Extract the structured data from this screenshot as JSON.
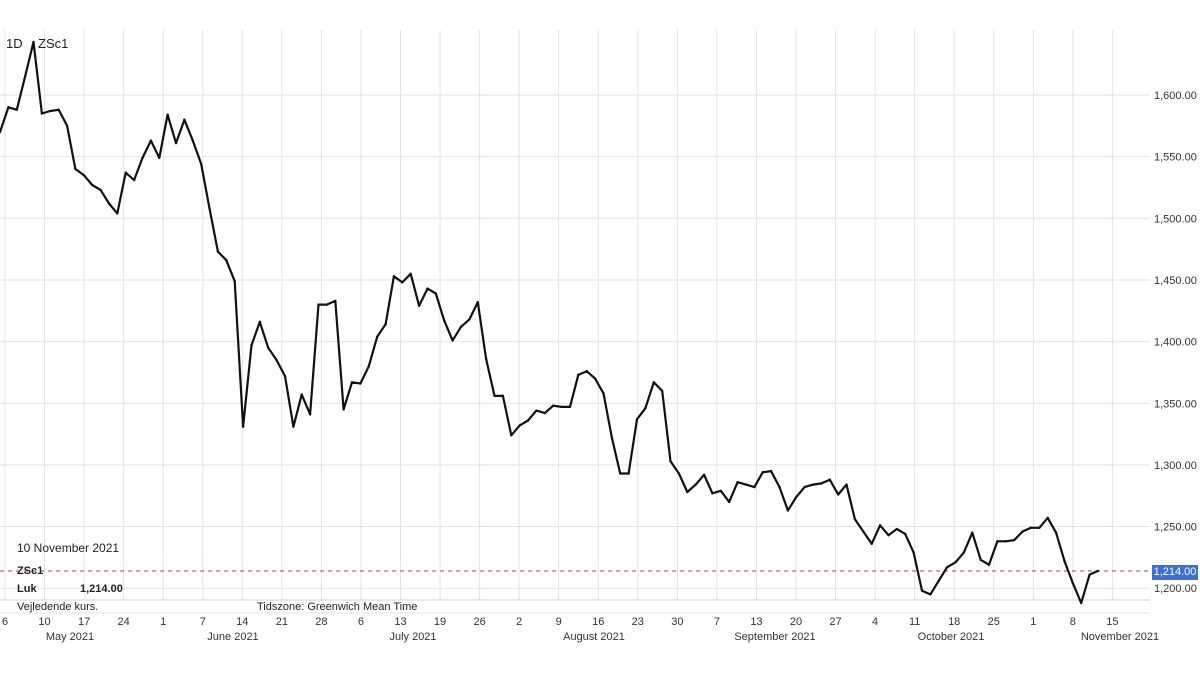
{
  "header": {
    "interval": "1D",
    "symbol": "ZSc1"
  },
  "info": {
    "date": "10 November 2021",
    "symbol": "ZSc1",
    "close_label": "Luk",
    "close_value": "1,214.00",
    "note": "Vejledende kurs.",
    "timezone": "Tidszone: Greenwich Mean Time"
  },
  "last_price_label": "1,214.00",
  "colors": {
    "line": "#111111",
    "dashed": "#c0392b",
    "price_tag": "#3b6fd1",
    "grid": "#e3e3e3"
  },
  "chart_data": {
    "type": "line",
    "title": "",
    "xlabel": "",
    "ylabel": "",
    "ylim": [
      1180,
      1650
    ],
    "y_ticks": [
      "1,200.00",
      "1,250.00",
      "1,300.00",
      "1,350.00",
      "1,400.00",
      "1,450.00",
      "1,500.00",
      "1,550.00",
      "1,600.00"
    ],
    "y_tick_values": [
      1200,
      1250,
      1300,
      1350,
      1400,
      1450,
      1500,
      1550,
      1600
    ],
    "x_ticks": [
      "6",
      "10",
      "17",
      "24",
      "1",
      "7",
      "14",
      "21",
      "28",
      "6",
      "13",
      "19",
      "26",
      "2",
      "9",
      "16",
      "23",
      "30",
      "7",
      "13",
      "20",
      "27",
      "4",
      "11",
      "18",
      "25",
      "1",
      "8",
      "15"
    ],
    "months": [
      "May 2021",
      "June 2021",
      "July 2021",
      "August 2021",
      "September 2021",
      "October 2021",
      "November 2021"
    ],
    "reference_line": 1214,
    "series": [
      {
        "values": [
          1570,
          1590,
          1588,
          1615,
          1643,
          1585,
          1587,
          1588,
          1575,
          1540,
          1535,
          1527,
          1523,
          1512,
          1504,
          1537,
          1531,
          1549,
          1563,
          1549,
          1584,
          1561,
          1580,
          1563,
          1544,
          1508,
          1473,
          1466,
          1449,
          1331,
          1397,
          1416,
          1395,
          1385,
          1372,
          1331,
          1357,
          1341,
          1430,
          1430,
          1433,
          1345,
          1367,
          1366,
          1380,
          1404,
          1414,
          1453,
          1448,
          1455,
          1429,
          1443,
          1439,
          1417,
          1401,
          1412,
          1418,
          1432,
          1386,
          1356,
          1356,
          1324,
          1332,
          1336,
          1344,
          1342,
          1348,
          1347,
          1347,
          1373,
          1376,
          1370,
          1358,
          1322,
          1293,
          1293,
          1337,
          1346,
          1367,
          1360,
          1303,
          1293,
          1278,
          1284,
          1292,
          1277,
          1279,
          1270,
          1286,
          1284,
          1282,
          1294,
          1295,
          1282,
          1263,
          1274,
          1282,
          1284,
          1285,
          1288,
          1276,
          1284,
          1256,
          1246,
          1236,
          1251,
          1243,
          1248,
          1244,
          1229,
          1198,
          1195,
          1206,
          1217,
          1221,
          1229,
          1245,
          1223,
          1219,
          1238,
          1238,
          1239,
          1246,
          1249,
          1249,
          1257,
          1245,
          1222,
          1204,
          1188,
          1211,
          1214
        ]
      }
    ]
  }
}
